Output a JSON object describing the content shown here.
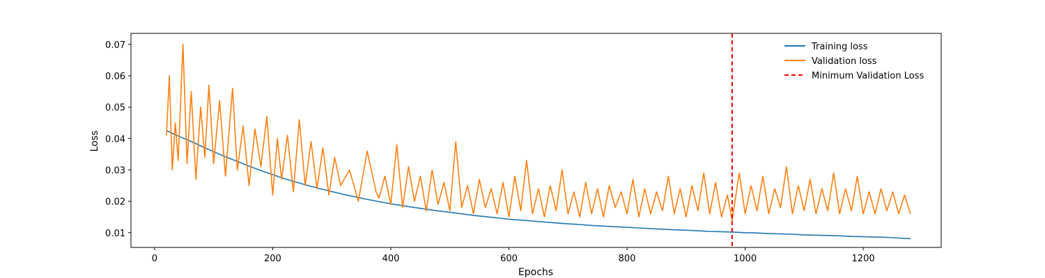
{
  "chart_data": {
    "type": "line",
    "title": "",
    "xlabel": "Epochs",
    "ylabel": "Loss",
    "xlim": [
      -40,
      1332
    ],
    "ylim": [
      0.0053,
      0.0735
    ],
    "xticks": [
      0,
      200,
      400,
      600,
      800,
      1000,
      1200
    ],
    "yticks": [
      0.01,
      0.02,
      0.03,
      0.04,
      0.05,
      0.06,
      0.07
    ],
    "xtick_labels": [
      "0",
      "200",
      "400",
      "600",
      "800",
      "1000",
      "1200"
    ],
    "ytick_labels": [
      "0.01",
      "0.02",
      "0.03",
      "0.04",
      "0.05",
      "0.06",
      "0.07"
    ],
    "grid": false,
    "legend_position": "top-right",
    "series": [
      {
        "name": "Training loss",
        "color": "#1f77b4",
        "style": "solid",
        "x": [
          20,
          40,
          60,
          80,
          100,
          120,
          140,
          160,
          180,
          200,
          220,
          240,
          260,
          280,
          300,
          320,
          340,
          360,
          380,
          400,
          420,
          440,
          460,
          480,
          500,
          520,
          540,
          560,
          580,
          600,
          620,
          640,
          660,
          680,
          700,
          720,
          740,
          760,
          780,
          800,
          820,
          840,
          860,
          880,
          900,
          920,
          940,
          960,
          980,
          1000,
          1020,
          1040,
          1060,
          1080,
          1100,
          1120,
          1140,
          1160,
          1180,
          1200,
          1220,
          1240,
          1260,
          1280
        ],
        "y": [
          0.0425,
          0.0408,
          0.0392,
          0.0375,
          0.0358,
          0.0342,
          0.0327,
          0.0312,
          0.0298,
          0.0285,
          0.0272,
          0.0261,
          0.025,
          0.024,
          0.0231,
          0.0222,
          0.0214,
          0.0206,
          0.0199,
          0.0192,
          0.0186,
          0.018,
          0.0175,
          0.0169,
          0.0165,
          0.016,
          0.0155,
          0.0151,
          0.0147,
          0.0143,
          0.014,
          0.0137,
          0.0134,
          0.0131,
          0.0128,
          0.0126,
          0.0123,
          0.0121,
          0.0119,
          0.0117,
          0.0115,
          0.0113,
          0.0111,
          0.0109,
          0.0108,
          0.0106,
          0.0104,
          0.0103,
          0.0102,
          0.01,
          0.0099,
          0.0097,
          0.0096,
          0.0095,
          0.0093,
          0.0092,
          0.0091,
          0.009,
          0.0088,
          0.0087,
          0.0086,
          0.0085,
          0.0083,
          0.0081
        ]
      },
      {
        "name": "Validation loss",
        "color": "#ff7f0e",
        "style": "solid",
        "x": [
          20,
          25,
          30,
          35,
          40,
          48,
          55,
          62,
          70,
          78,
          85,
          92,
          100,
          110,
          120,
          132,
          140,
          150,
          160,
          170,
          180,
          190,
          200,
          208,
          215,
          225,
          235,
          245,
          255,
          265,
          275,
          285,
          295,
          305,
          315,
          330,
          345,
          360,
          375,
          380,
          390,
          400,
          410,
          420,
          430,
          440,
          450,
          460,
          470,
          480,
          490,
          500,
          510,
          520,
          530,
          540,
          550,
          560,
          570,
          580,
          590,
          600,
          610,
          620,
          630,
          640,
          650,
          660,
          670,
          680,
          690,
          700,
          710,
          720,
          730,
          740,
          750,
          760,
          770,
          780,
          790,
          800,
          810,
          820,
          830,
          840,
          850,
          860,
          870,
          880,
          890,
          900,
          910,
          920,
          930,
          940,
          950,
          960,
          970,
          978,
          990,
          1000,
          1010,
          1020,
          1030,
          1040,
          1050,
          1060,
          1070,
          1080,
          1090,
          1100,
          1110,
          1120,
          1130,
          1140,
          1150,
          1160,
          1170,
          1180,
          1190,
          1200,
          1210,
          1220,
          1230,
          1240,
          1250,
          1260,
          1270,
          1280
        ],
        "y": [
          0.041,
          0.06,
          0.03,
          0.045,
          0.033,
          0.07,
          0.032,
          0.055,
          0.027,
          0.05,
          0.034,
          0.057,
          0.032,
          0.052,
          0.028,
          0.056,
          0.03,
          0.044,
          0.025,
          0.043,
          0.031,
          0.047,
          0.022,
          0.04,
          0.027,
          0.041,
          0.023,
          0.046,
          0.025,
          0.039,
          0.024,
          0.037,
          0.022,
          0.034,
          0.025,
          0.03,
          0.02,
          0.036,
          0.023,
          0.021,
          0.028,
          0.019,
          0.038,
          0.018,
          0.031,
          0.02,
          0.028,
          0.017,
          0.03,
          0.019,
          0.026,
          0.017,
          0.039,
          0.018,
          0.025,
          0.016,
          0.027,
          0.018,
          0.024,
          0.016,
          0.026,
          0.015,
          0.028,
          0.017,
          0.033,
          0.016,
          0.024,
          0.015,
          0.025,
          0.017,
          0.03,
          0.016,
          0.023,
          0.015,
          0.026,
          0.016,
          0.024,
          0.015,
          0.025,
          0.018,
          0.023,
          0.016,
          0.027,
          0.015,
          0.024,
          0.016,
          0.023,
          0.017,
          0.028,
          0.016,
          0.024,
          0.015,
          0.025,
          0.017,
          0.029,
          0.016,
          0.026,
          0.015,
          0.022,
          0.014,
          0.029,
          0.016,
          0.025,
          0.017,
          0.028,
          0.016,
          0.024,
          0.018,
          0.031,
          0.016,
          0.025,
          0.017,
          0.027,
          0.016,
          0.024,
          0.017,
          0.029,
          0.016,
          0.024,
          0.017,
          0.028,
          0.016,
          0.023,
          0.016,
          0.024,
          0.017,
          0.023,
          0.016,
          0.022,
          0.016
        ]
      }
    ],
    "vline": {
      "name": "Minimum Validation Loss",
      "x": 978,
      "color": "#ff0000",
      "style": "dashed"
    }
  }
}
